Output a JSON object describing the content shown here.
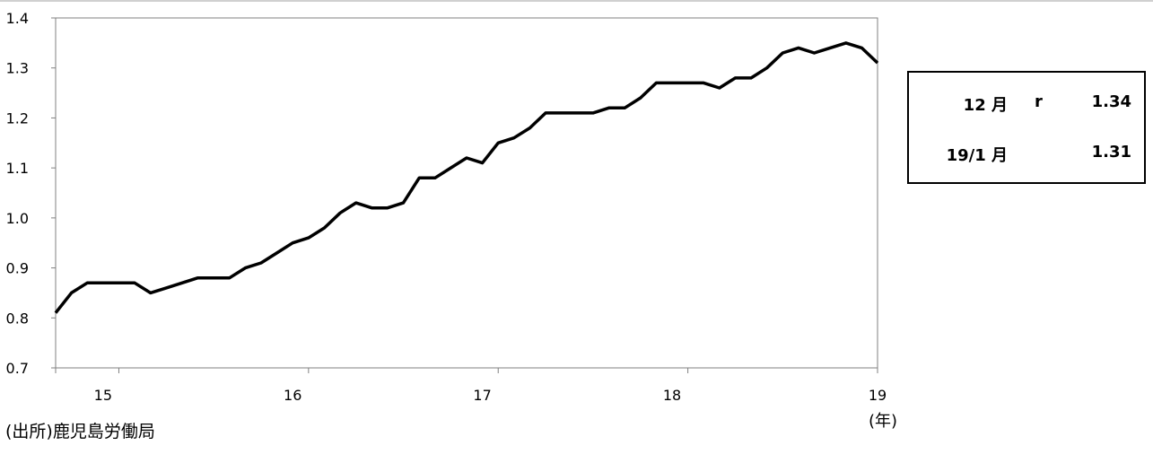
{
  "chart_data": {
    "type": "line",
    "title": "",
    "xlabel": "",
    "ylabel": "",
    "x_unit": "(年)",
    "ylim": [
      0.7,
      1.4
    ],
    "y_ticks": [
      "0.7",
      "0.8",
      "0.9",
      "1.0",
      "1.1",
      "1.2",
      "1.3",
      "1.4"
    ],
    "x_ticks": [
      "15",
      "16",
      "17",
      "18",
      "19"
    ],
    "grid": false,
    "line_color": "#000000",
    "series": [
      {
        "values": [
          0.81,
          0.85,
          0.87,
          0.87,
          0.87,
          0.87,
          0.85,
          0.86,
          0.87,
          0.88,
          0.88,
          0.88,
          0.9,
          0.91,
          0.93,
          0.95,
          0.96,
          0.98,
          1.01,
          1.03,
          1.02,
          1.02,
          1.03,
          1.08,
          1.08,
          1.1,
          1.12,
          1.11,
          1.15,
          1.16,
          1.18,
          1.21,
          1.21,
          1.21,
          1.21,
          1.22,
          1.22,
          1.24,
          1.27,
          1.27,
          1.27,
          1.27,
          1.26,
          1.28,
          1.28,
          1.3,
          1.33,
          1.34,
          1.33,
          1.34,
          1.35,
          1.34,
          1.31
        ]
      }
    ]
  },
  "legend_box": {
    "rows": [
      {
        "month": "12 月",
        "flag": "r",
        "value": "1.34"
      },
      {
        "month": "19/1 月",
        "flag": "",
        "value": "1.31"
      }
    ]
  },
  "source_note": "(出所)鹿児島労働局"
}
